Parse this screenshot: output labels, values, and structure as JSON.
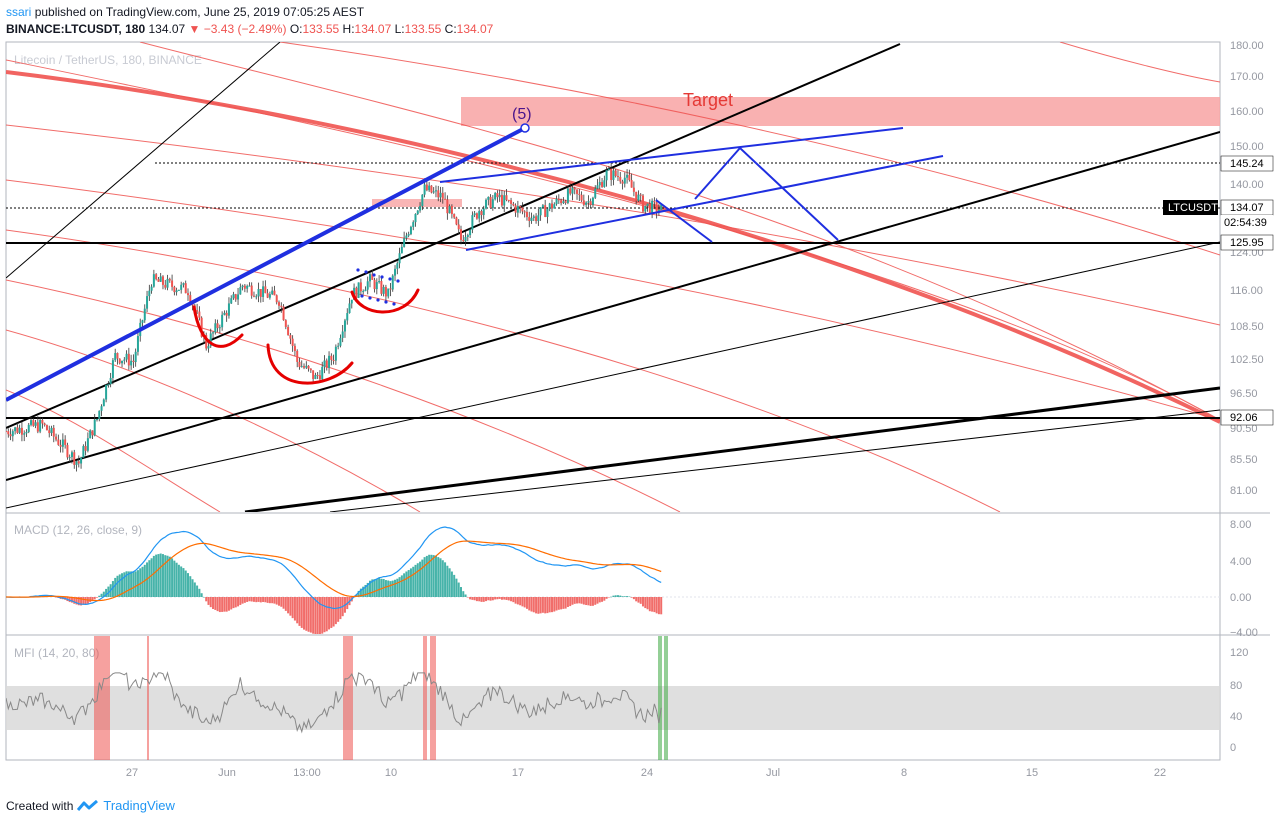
{
  "header": {
    "user": "ssari",
    "published": "published on TradingView.com, June 25, 2019 07:05:25 AEST",
    "symbol": "BINANCE:LTCUSDT, 180",
    "last": "134.07",
    "change": "−3.43 (−2.49%)",
    "o_label": "O:",
    "o": "133.55",
    "h_label": "H:",
    "h": "134.07",
    "l_label": "L:",
    "l": "133.55",
    "c_label": "C:",
    "c": "134.07"
  },
  "watermark": "Litecoin / TetherUS, 180, BINANCE",
  "annotations": {
    "target": "Target",
    "wave5": "(5)"
  },
  "price_axis": {
    "ticks": [
      "180.00",
      "170.00",
      "160.00",
      "150.00",
      "140.00",
      "124.00",
      "116.00",
      "108.50",
      "102.50",
      "96.50",
      "90.50",
      "85.50",
      "81.00"
    ],
    "badges": {
      "level_high": "145.24",
      "symbol_name": "LTCUSDT",
      "last_price": "134.07",
      "countdown": "02:54:39",
      "level_mid": "125.95",
      "level_low": "92.06"
    }
  },
  "macd": {
    "label": "MACD (12, 26, close, 9)",
    "ticks": [
      "8.00",
      "4.00",
      "0.00",
      "−4.00"
    ]
  },
  "mfi": {
    "label": "MFI (14, 20, 80)",
    "ticks": [
      "120",
      "80",
      "40",
      "0"
    ]
  },
  "time_axis": {
    "ticks": [
      "27",
      "Jun",
      "13:00",
      "10",
      "17",
      "24",
      "Jul",
      "8",
      "15",
      "22"
    ]
  },
  "footer": {
    "created": "Created with",
    "brand": "TradingView"
  },
  "colors": {
    "up": "#26a69a",
    "down": "#ef5350",
    "blue": "#1f2fe0",
    "target_zone": "#f8a3a3",
    "channel_red": "#ef5350"
  },
  "chart_data": {
    "type": "candlestick",
    "symbol": "BINANCE:LTCUSDT",
    "interval": "180",
    "horizontal_levels": [
      145.24,
      134.07,
      125.95,
      92.06
    ],
    "target_zone": [
      155,
      165
    ],
    "price_path": [
      {
        "t": "May 20",
        "p": 90
      },
      {
        "t": "May 22",
        "p": 91
      },
      {
        "t": "May 24",
        "p": 85
      },
      {
        "t": "May 25",
        "p": 92
      },
      {
        "t": "May 26",
        "p": 103
      },
      {
        "t": "May 27",
        "p": 102
      },
      {
        "t": "May 28",
        "p": 118
      },
      {
        "t": "May 30",
        "p": 116
      },
      {
        "t": "May 31",
        "p": 105
      },
      {
        "t": "Jun 2",
        "p": 117
      },
      {
        "t": "Jun 4",
        "p": 114
      },
      {
        "t": "Jun 5",
        "p": 102
      },
      {
        "t": "Jun 6",
        "p": 99
      },
      {
        "t": "Jun 7",
        "p": 103
      },
      {
        "t": "Jun 8",
        "p": 115
      },
      {
        "t": "Jun 9",
        "p": 118
      },
      {
        "t": "Jun 10",
        "p": 115
      },
      {
        "t": "Jun 11",
        "p": 128
      },
      {
        "t": "Jun 12",
        "p": 139
      },
      {
        "t": "Jun 13",
        "p": 137
      },
      {
        "t": "Jun 14",
        "p": 127
      },
      {
        "t": "Jun 15",
        "p": 134
      },
      {
        "t": "Jun 16",
        "p": 137
      },
      {
        "t": "Jun 18",
        "p": 132
      },
      {
        "t": "Jun 20",
        "p": 138
      },
      {
        "t": "Jun 21",
        "p": 136
      },
      {
        "t": "Jun 22",
        "p": 143
      },
      {
        "t": "Jun 23",
        "p": 142
      },
      {
        "t": "Jun 24",
        "p": 135
      },
      {
        "t": "Jun 25",
        "p": 134.07
      }
    ]
  }
}
